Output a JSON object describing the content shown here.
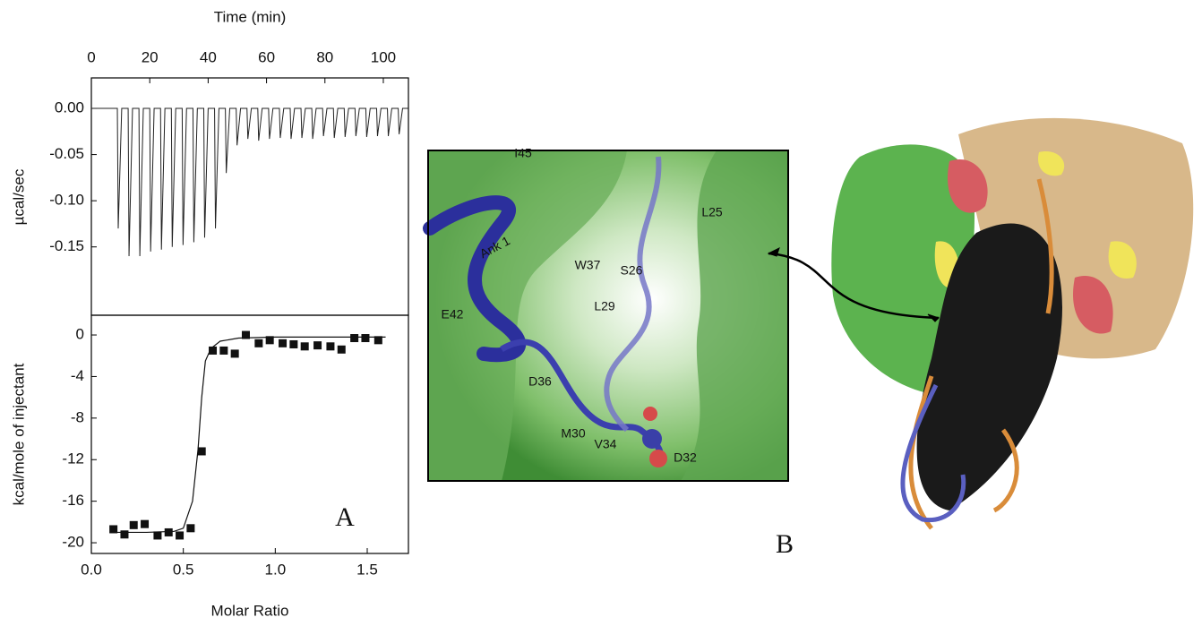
{
  "chart_data": [
    {
      "type": "line",
      "title": "Time (min)",
      "y_label": "µcal/sec",
      "color": "#222",
      "xlim": [
        0,
        108.6
      ],
      "xticks": [
        0,
        20,
        40,
        60,
        80,
        100
      ],
      "ylim": [
        -0.224,
        0.033
      ],
      "yticks": [
        {
          "value": 0,
          "label": "0.00"
        },
        {
          "value": -0.05,
          "label": "-0.05"
        },
        {
          "value": -0.1,
          "label": "-0.10"
        },
        {
          "value": -0.15,
          "label": "-0.15"
        }
      ],
      "x": [
        0,
        8.9,
        9.2,
        10.4,
        12.6,
        12.9,
        14.1,
        16.3,
        16.6,
        17.8,
        20.0,
        20.3,
        21.5,
        23.7,
        24.0,
        25.2,
        27.4,
        27.7,
        28.9,
        31.1,
        31.4,
        32.6,
        34.8,
        35.1,
        36.3,
        38.5,
        38.8,
        40.0,
        42.2,
        42.5,
        43.7,
        45.9,
        46.2,
        47.4,
        49.6,
        49.9,
        51.1,
        53.3,
        53.6,
        54.8,
        57.0,
        57.3,
        58.5,
        60.7,
        61.0,
        62.2,
        64.4,
        64.7,
        65.9,
        68.1,
        68.4,
        69.6,
        71.8,
        72.1,
        73.3,
        75.5,
        75.8,
        77.0,
        79.2,
        79.5,
        80.7,
        82.9,
        83.2,
        84.4,
        86.6,
        86.9,
        88.1,
        90.3,
        90.6,
        91.8,
        94.0,
        94.3,
        95.5,
        97.7,
        98.0,
        99.2,
        101.4,
        101.7,
        102.9,
        105.1,
        105.4,
        106.6,
        108.6
      ],
      "values": [
        0,
        0,
        -0.13,
        0,
        0,
        -0.16,
        0,
        0,
        -0.16,
        0,
        0,
        -0.155,
        0,
        0,
        -0.153,
        0,
        0,
        -0.15,
        0,
        0,
        -0.148,
        0,
        0,
        -0.145,
        0,
        0,
        -0.14,
        0,
        0,
        -0.13,
        0,
        0,
        -0.07,
        0,
        0,
        -0.04,
        0,
        0,
        -0.033,
        0,
        0,
        -0.035,
        0,
        0,
        -0.033,
        0,
        0,
        -0.032,
        0,
        0,
        -0.033,
        0,
        0,
        -0.032,
        0,
        0,
        -0.033,
        0,
        0,
        -0.03,
        0,
        0,
        -0.032,
        0,
        0,
        -0.031,
        0,
        0,
        -0.03,
        0,
        0,
        -0.031,
        0,
        0,
        -0.03,
        0,
        0,
        -0.03,
        0,
        0,
        -0.028,
        0,
        0
      ]
    },
    {
      "type": "scatter",
      "x_label": "Molar Ratio",
      "y_label": "kcal/mole of injectant",
      "annotation": "A",
      "xlim": [
        0,
        1.724
      ],
      "xticks": [
        {
          "value": 0,
          "label": "0.0"
        },
        0.5,
        {
          "value": 1,
          "label": "1.0"
        },
        1.5
      ],
      "ylim": [
        -21.03,
        1.9
      ],
      "yticks": [
        0,
        -4,
        -8,
        -12,
        -16,
        -20
      ],
      "series": [
        {
          "style": "markers",
          "color": "#111",
          "x": [
            0.12,
            0.18,
            0.23,
            0.29,
            0.36,
            0.42,
            0.48,
            0.54,
            0.6,
            0.66,
            0.72,
            0.78,
            0.84,
            0.91,
            0.97,
            1.04,
            1.1,
            1.16,
            1.23,
            1.3,
            1.36,
            1.43,
            1.49,
            1.56
          ],
          "values": [
            -18.7,
            -19.2,
            -18.3,
            -18.2,
            -19.3,
            -19.0,
            -19.3,
            -18.6,
            -11.2,
            -1.5,
            -1.5,
            -1.8,
            0.0,
            -0.8,
            -0.5,
            -0.8,
            -0.9,
            -1.1,
            -1.0,
            -1.1,
            -1.4,
            -0.3,
            -0.3,
            -0.5
          ]
        },
        {
          "style": "line",
          "color": "#111",
          "x": [
            0.1,
            0.3,
            0.45,
            0.5,
            0.55,
            0.58,
            0.6,
            0.62,
            0.65,
            0.7,
            0.8,
            1.0,
            1.6
          ],
          "values": [
            -19,
            -19,
            -18.9,
            -18.6,
            -16,
            -11,
            -6,
            -2.5,
            -1.3,
            -0.6,
            -0.3,
            -0.2,
            -0.2
          ]
        }
      ]
    }
  ],
  "structure": {
    "panel_label": "B",
    "labels": [
      "I45",
      "Ank 1",
      "W37",
      "S26",
      "L25",
      "E42",
      "L29",
      "D36",
      "M30",
      "V34",
      "D32"
    ]
  }
}
